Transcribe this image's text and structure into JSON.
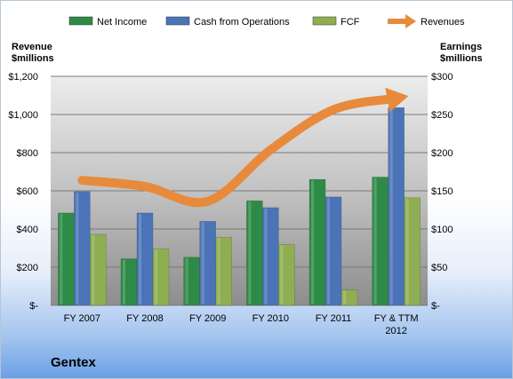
{
  "chart_data": {
    "type": "bar",
    "categories": [
      "FY 2007",
      "FY 2008",
      "FY 2009",
      "FY 2010",
      "FY 2011",
      "FY & TTM|2012"
    ],
    "series": [
      {
        "name": "Net Income",
        "axis": "right",
        "color": "#2e8b47",
        "values": [
          121,
          61,
          63,
          137,
          165,
          168
        ]
      },
      {
        "name": "Cash from Operations",
        "axis": "right",
        "color": "#4b74b8",
        "values": [
          149,
          121,
          110,
          128,
          142,
          259
        ]
      },
      {
        "name": "FCF",
        "axis": "right",
        "color": "#8fae52",
        "values": [
          93,
          74,
          89,
          80,
          20,
          141
        ]
      }
    ],
    "line_series": {
      "name": "Revenues",
      "axis": "left",
      "color": "#e88a3c",
      "values": [
        655,
        623,
        545,
        815,
        1025,
        1085
      ]
    },
    "left_axis": {
      "title_lines": [
        "Revenue",
        "$millions"
      ],
      "ylim": [
        0,
        1200
      ],
      "ticks": [
        "$-",
        "$200",
        "$400",
        "$600",
        "$800",
        "$1,000",
        "$1,200"
      ]
    },
    "right_axis": {
      "title_lines": [
        "Earnings",
        "$millions"
      ],
      "ylim": [
        0,
        300
      ],
      "ticks": [
        "$-",
        "$50",
        "$100",
        "$150",
        "$200",
        "$250",
        "$300"
      ]
    },
    "legend": {
      "position": "top",
      "entries": [
        "Net Income",
        "Cash from Operations",
        "FCF",
        "Revenues"
      ]
    },
    "grid": true
  },
  "company": "Gentex"
}
